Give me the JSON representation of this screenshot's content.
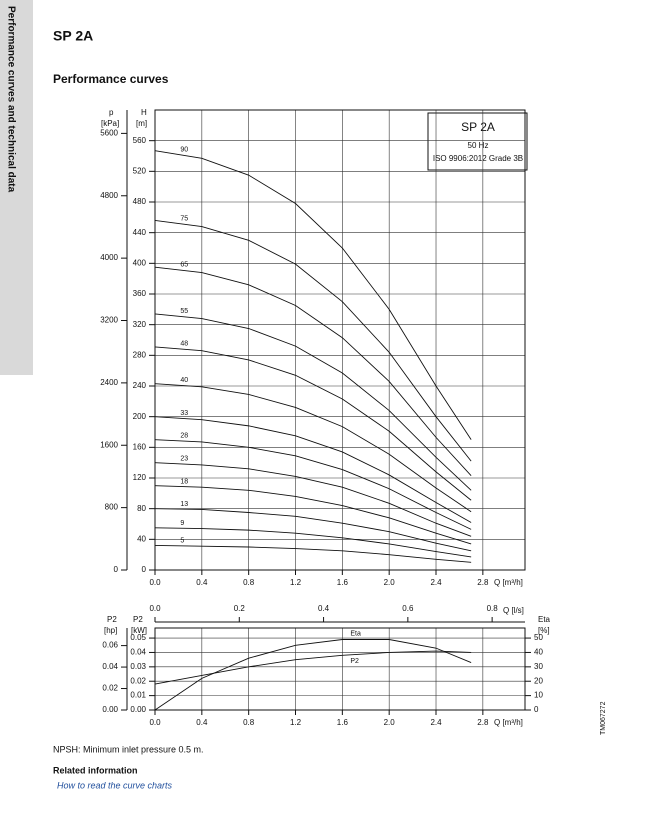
{
  "sidebar": {
    "text": "Performance curves and technical data"
  },
  "header": {
    "title": "SP 2A",
    "subtitle": "Performance curves"
  },
  "chart_data": [
    {
      "type": "line",
      "legend_box": {
        "title": "SP 2A",
        "lines": [
          "50 Hz",
          "ISO 9906:2012 Grade 3B"
        ]
      },
      "x_label": "Q [m³/h]",
      "x2_label": "Q [l/s]",
      "y_label": [
        "H",
        "[m]"
      ],
      "p_label": [
        "p",
        "[kPa]"
      ],
      "x": [
        0,
        0.4,
        0.8,
        1.2,
        1.6,
        2.0,
        2.4,
        2.7
      ],
      "xlim": [
        0,
        3.16
      ],
      "xticks": [
        {
          "value": 0,
          "label": "0.0"
        },
        0.4,
        0.8,
        1.2,
        1.6,
        {
          "value": 2,
          "label": "2.0"
        },
        2.4,
        2.8
      ],
      "x2lim": [
        0,
        0.878
      ],
      "x2ticks": [
        {
          "value": 0,
          "label": "0.0"
        },
        0.2,
        0.4,
        0.6,
        0.8
      ],
      "ylim": [
        0,
        600
      ],
      "yticks": [
        0,
        40,
        80,
        120,
        160,
        200,
        240,
        280,
        320,
        360,
        400,
        440,
        480,
        520,
        560
      ],
      "plim": [
        0,
        5900
      ],
      "pticks": [
        0,
        800,
        1600,
        2400,
        3200,
        4000,
        4800,
        5600
      ],
      "grid": true,
      "color": "#111111",
      "series": [
        {
          "name": "90",
          "values": [
            547,
            537,
            515,
            478,
            420,
            340,
            240,
            170
          ]
        },
        {
          "name": "75",
          "values": [
            456,
            448,
            430,
            399,
            350,
            284,
            200,
            142
          ]
        },
        {
          "name": "65",
          "values": [
            395,
            388,
            372,
            345,
            303,
            246,
            173,
            123
          ]
        },
        {
          "name": "55",
          "values": [
            334,
            328,
            315,
            292,
            257,
            208,
            147,
            104
          ]
        },
        {
          "name": "48",
          "values": [
            291,
            286,
            274,
            254,
            223,
            181,
            128,
            91
          ]
        },
        {
          "name": "40",
          "values": [
            243,
            239,
            229,
            212,
            187,
            151,
            107,
            76
          ]
        },
        {
          "name": "33",
          "values": [
            200,
            196,
            188,
            175,
            154,
            124,
            88,
            62
          ]
        },
        {
          "name": "28",
          "values": [
            170,
            167,
            160,
            149,
            131,
            106,
            75,
            53
          ]
        },
        {
          "name": "23",
          "values": [
            140,
            137,
            132,
            122,
            108,
            87,
            61,
            44
          ]
        },
        {
          "name": "18",
          "values": [
            110,
            108,
            104,
            96,
            84,
            68,
            48,
            34
          ]
        },
        {
          "name": "13",
          "values": [
            80,
            79,
            75,
            70,
            61,
            50,
            35,
            25
          ]
        },
        {
          "name": "9",
          "values": [
            55,
            54,
            52,
            48,
            42,
            34,
            24,
            17
          ]
        },
        {
          "name": "5",
          "values": [
            32,
            31,
            30,
            28,
            25,
            20,
            14,
            10
          ]
        }
      ]
    },
    {
      "type": "line",
      "x_label": "Q [m³/h]",
      "y_label": [
        "P2",
        "[kW]"
      ],
      "hp_label": [
        "P2",
        "[hp]"
      ],
      "y2_label": [
        "Eta",
        "[%]"
      ],
      "x": [
        0,
        0.4,
        0.8,
        1.2,
        1.6,
        2.0,
        2.4,
        2.7
      ],
      "xlim": [
        0,
        3.16
      ],
      "xticks": [
        {
          "value": 0,
          "label": "0.0"
        },
        0.4,
        0.8,
        1.2,
        1.6,
        {
          "value": 2,
          "label": "2.0"
        },
        2.4,
        2.8
      ],
      "ylim": [
        0,
        0.057
      ],
      "yticks": [
        {
          "value": 0,
          "label": "0.00"
        },
        0.01,
        0.02,
        0.03,
        0.04,
        0.05
      ],
      "hplim": [
        0,
        0.0764
      ],
      "hpticks": [
        {
          "value": 0,
          "label": "0.00"
        },
        0.02,
        0.04,
        0.06
      ],
      "y2lim": [
        0,
        57
      ],
      "y2ticks": [
        0,
        10,
        20,
        30,
        40,
        50
      ],
      "grid": true,
      "color": "#111111",
      "series": [
        {
          "name": "Eta",
          "axis": "y2",
          "values": [
            0,
            22,
            36,
            45,
            49,
            49,
            43,
            33
          ]
        },
        {
          "name": "P2",
          "values": [
            0.018,
            0.024,
            0.03,
            0.035,
            0.038,
            0.04,
            0.041,
            0.04
          ]
        }
      ]
    }
  ],
  "footer": {
    "npsh": "NPSH: Minimum inlet pressure 0.5 m.",
    "related": "Related information",
    "link": "How to read the curve charts",
    "code": "TM067272"
  }
}
